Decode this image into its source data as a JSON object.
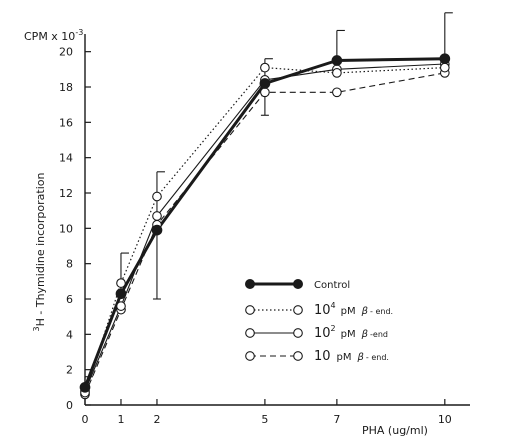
{
  "chart_data": {
    "type": "line",
    "y_unit_label": "CPM x 10",
    "y_unit_exponent": "-3",
    "ylabel_prefix": "3",
    "ylabel_main": "H - Thymidine incorporation",
    "xlabel": "PHA (ug/ml)",
    "x": [
      0,
      1,
      2,
      5,
      7,
      10
    ],
    "x_ticks": [
      "0",
      "1",
      "2",
      "5",
      "7",
      "10"
    ],
    "y_ticks": [
      "0",
      "2",
      "4",
      "6",
      "8",
      "10",
      "12",
      "14",
      "16",
      "18",
      "20"
    ],
    "xlim": [
      0,
      10.7
    ],
    "ylim": [
      0,
      21
    ],
    "grid": false,
    "legend_position": "lower-right",
    "series": [
      {
        "key": "control",
        "name": "Control",
        "values": [
          1.0,
          6.3,
          9.9,
          18.2,
          19.5,
          19.6
        ],
        "error_upper": [
          1.6,
          8.6,
          13.2,
          19.6,
          21.2,
          22.2
        ],
        "error_lower": [
          null,
          null,
          6.0,
          16.4,
          null,
          null
        ],
        "marker": "filled",
        "line_style": "solid",
        "line_width": 3
      },
      {
        "key": "end_1e4",
        "name": "10⁴ pM β-end.",
        "values": [
          0.7,
          6.9,
          11.8,
          19.1,
          18.8,
          19.1
        ],
        "marker": "open",
        "line_style": "dotted",
        "line_width": 1.2
      },
      {
        "key": "end_1e2",
        "name": "10² pM β-end",
        "values": [
          0.8,
          5.6,
          10.7,
          18.4,
          19.0,
          19.3
        ],
        "marker": "open",
        "line_style": "solid",
        "line_width": 1.1
      },
      {
        "key": "end_10",
        "name": "10 pM β-end.",
        "values": [
          0.6,
          5.4,
          10.2,
          17.7,
          17.7,
          18.8
        ],
        "marker": "open",
        "line_style": "dashed",
        "line_width": 1.1
      }
    ],
    "legend_labels": {
      "control": "Control",
      "end_1e4": {
        "base": "10",
        "exp": "4",
        "unit": "pM",
        "greek": "β",
        "suffix": "- end."
      },
      "end_1e2": {
        "base": "10",
        "exp": "2",
        "unit": "pM",
        "greek": "β",
        "suffix": "-end"
      },
      "end_10": {
        "base": "10",
        "exp": "",
        "unit": "pM",
        "greek": "β",
        "suffix": "- end."
      }
    }
  }
}
